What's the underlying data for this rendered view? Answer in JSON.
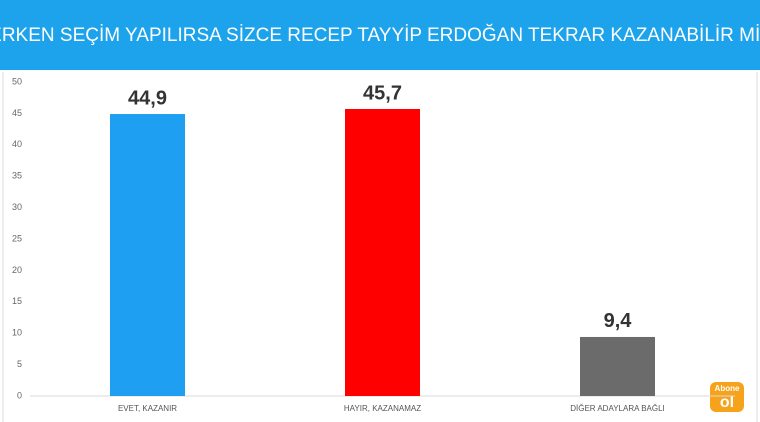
{
  "chart_data": {
    "type": "bar",
    "title": "ERKEN SEÇİM YAPILIRSA SİZCE RECEP TAYYİP ERDOĞAN TEKRAR KAZANABİLİR Mİ?",
    "categories": [
      "EVET, KAZANIR",
      "HAYIR, KAZANAMAZ",
      "DİĞER ADAYLARA BAĞLI"
    ],
    "values": [
      44.9,
      45.7,
      9.4
    ],
    "value_labels": [
      "44,9",
      "45,7",
      "9,4"
    ],
    "colors": [
      "#1e9ff2",
      "#ff0000",
      "#6b6b6b"
    ],
    "ylim": [
      0,
      50
    ],
    "yticks": [
      0,
      5,
      10,
      15,
      20,
      25,
      30,
      35,
      40,
      45,
      50
    ],
    "grid": false
  },
  "watermark": {
    "top": "Abone",
    "bottom": "ol"
  }
}
